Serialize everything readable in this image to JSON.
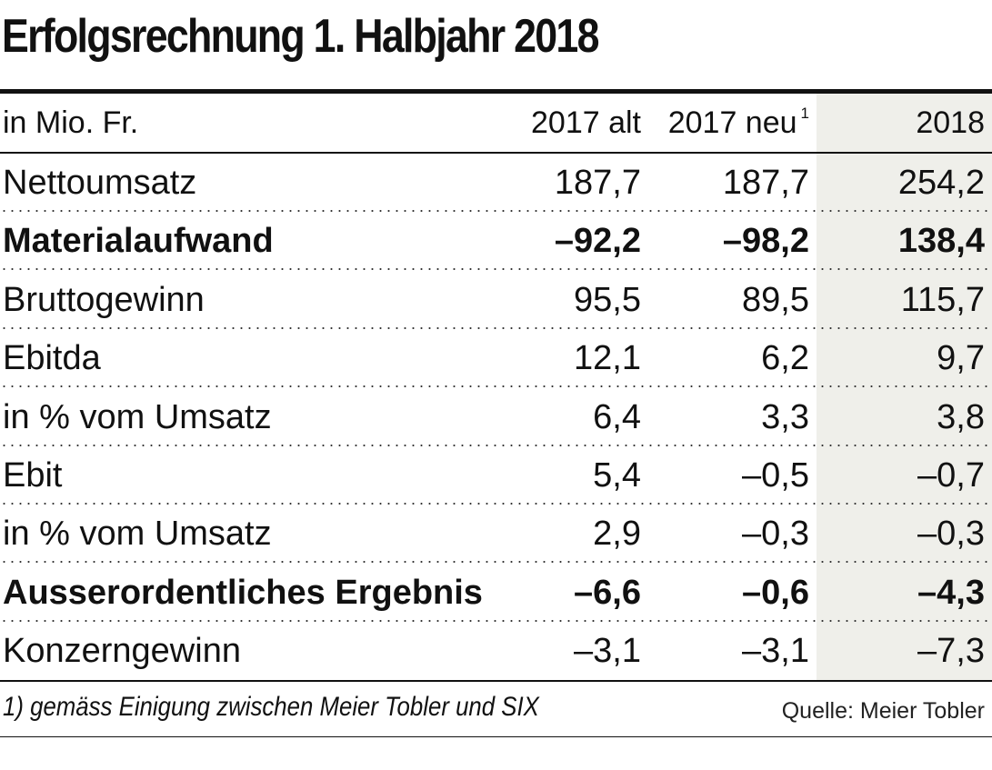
{
  "title": "Erfolgsrechnung 1. Halbjahr 2018",
  "header": {
    "unit_label": "in Mio. Fr.",
    "col1": "2017 alt",
    "col2": "2017 neu",
    "col2_footnote_marker": "1",
    "col3": "2018"
  },
  "rows": [
    {
      "label": "Nettoumsatz",
      "v2017alt": "187,7",
      "v2017neu": "187,7",
      "v2018": "254,2",
      "bold": false
    },
    {
      "label": "Materialaufwand",
      "v2017alt": "–92,2",
      "v2017neu": "–98,2",
      "v2018": "138,4",
      "bold": true
    },
    {
      "label": "Bruttogewinn",
      "v2017alt": "95,5",
      "v2017neu": "89,5",
      "v2018": "115,7",
      "bold": false
    },
    {
      "label": "Ebitda",
      "v2017alt": "12,1",
      "v2017neu": "6,2",
      "v2018": "9,7",
      "bold": false
    },
    {
      "label": "in % vom Umsatz",
      "v2017alt": "6,4",
      "v2017neu": "3,3",
      "v2018": "3,8",
      "bold": false
    },
    {
      "label": "Ebit",
      "v2017alt": "5,4",
      "v2017neu": "–0,5",
      "v2018": "–0,7",
      "bold": false
    },
    {
      "label": "in % vom Umsatz",
      "v2017alt": "2,9",
      "v2017neu": "–0,3",
      "v2018": "–0,3",
      "bold": false
    },
    {
      "label": "Ausserordentliches Ergebnis",
      "v2017alt": "–6,6",
      "v2017neu": "–0,6",
      "v2018": "–4,3",
      "bold": true
    },
    {
      "label": "Konzerngewinn",
      "v2017alt": "–3,1",
      "v2017neu": "–3,1",
      "v2018": "–7,3",
      "bold": false
    }
  ],
  "footnote": "1) gemäss Einigung zwischen Meier Tobler und SIX",
  "source": "Quelle: Meier Tobler",
  "colors": {
    "text": "#111111",
    "shade_2018": "#efefea"
  }
}
